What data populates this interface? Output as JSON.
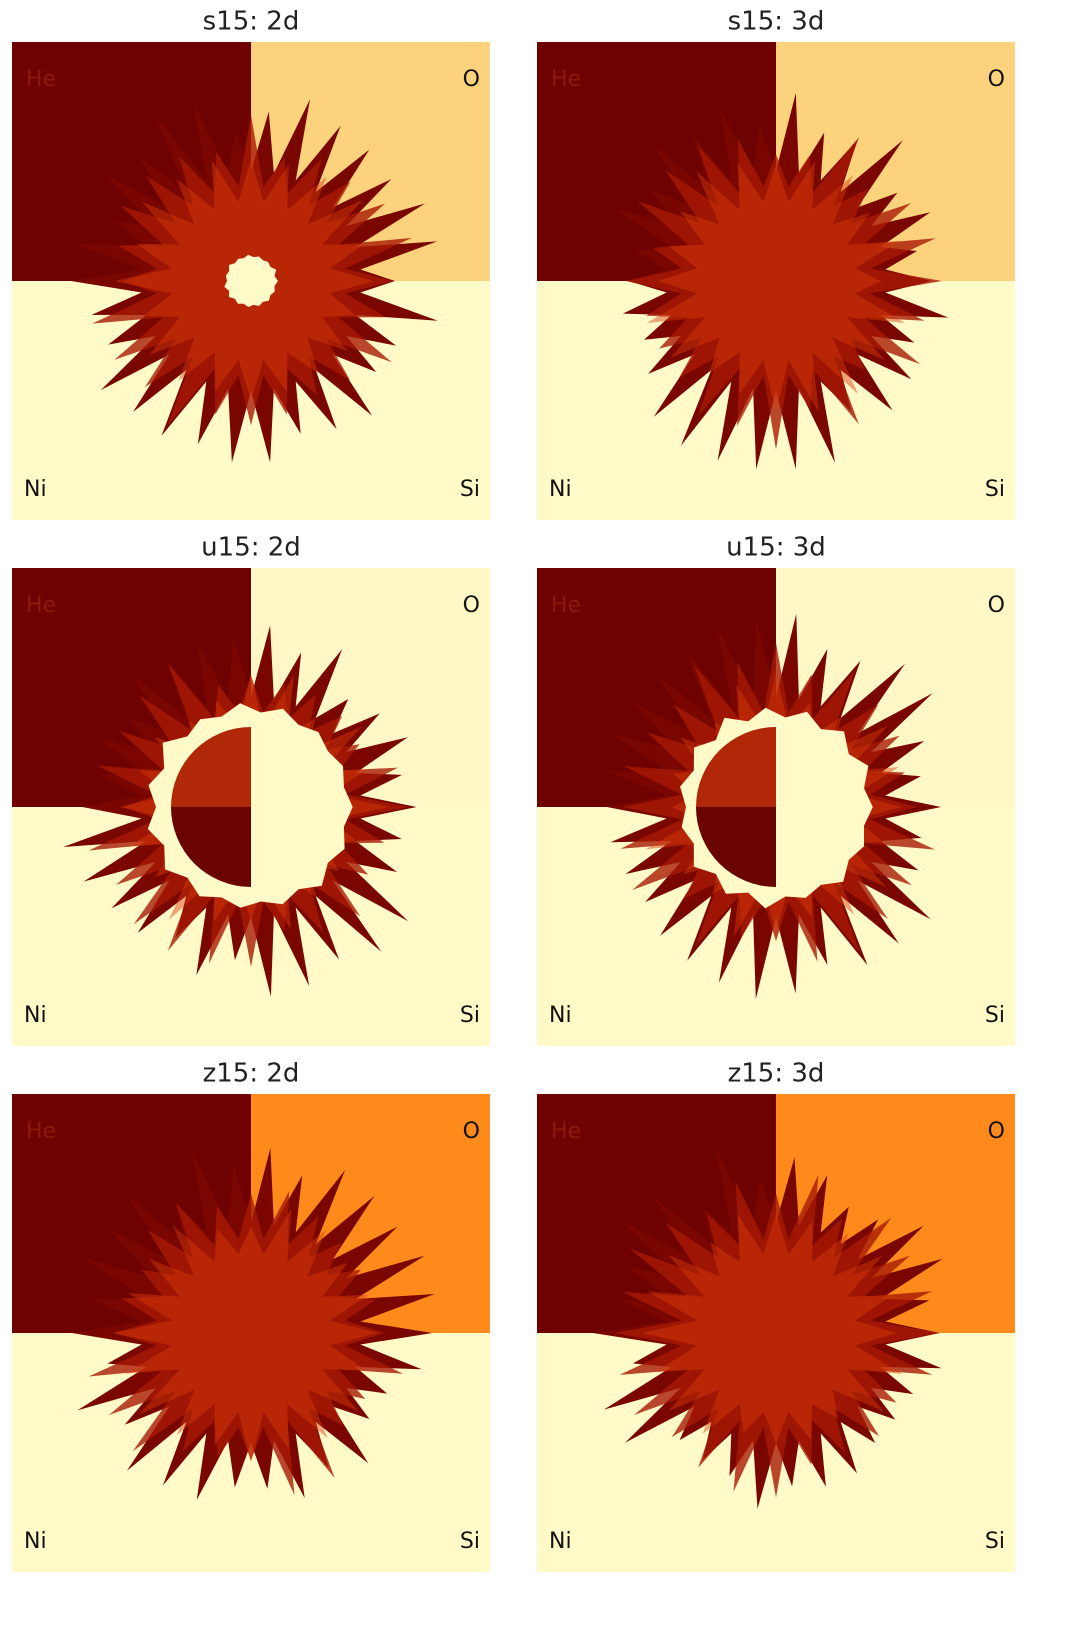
{
  "panels": [
    {
      "title": "s15: 2d",
      "labels": {
        "top_left": "He",
        "top_right": "O",
        "bottom_left": "Ni",
        "bottom_right": "Si"
      }
    },
    {
      "title": "s15: 3d",
      "labels": {
        "top_left": "He",
        "top_right": "O",
        "bottom_left": "Ni",
        "bottom_right": "Si"
      }
    },
    {
      "title": "u15: 2d",
      "labels": {
        "top_left": "He",
        "top_right": "O",
        "bottom_left": "Ni",
        "bottom_right": "Si"
      }
    },
    {
      "title": "u15: 3d",
      "labels": {
        "top_left": "He",
        "top_right": "O",
        "bottom_left": "Ni",
        "bottom_right": "Si"
      }
    },
    {
      "title": "z15: 2d",
      "labels": {
        "top_left": "He",
        "top_right": "O",
        "bottom_left": "Ni",
        "bottom_right": "Si"
      }
    },
    {
      "title": "z15: 3d",
      "labels": {
        "top_left": "He",
        "top_right": "O",
        "bottom_left": "Ni",
        "bottom_right": "Si"
      }
    }
  ]
}
